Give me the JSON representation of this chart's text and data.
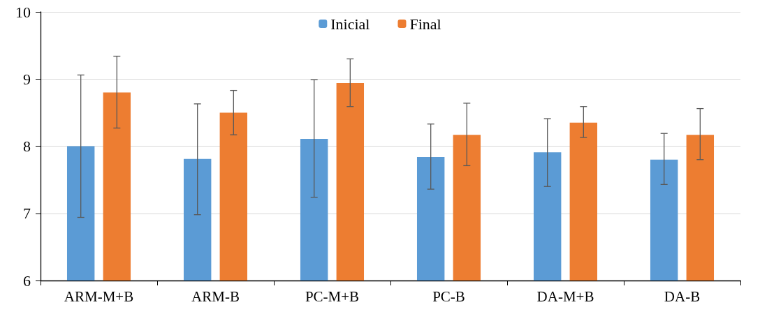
{
  "chart_data": {
    "type": "bar",
    "categories": [
      "ARM-M+B",
      "ARM-B",
      "PC-M+B",
      "PC-B",
      "DA-M+B",
      "DA-B"
    ],
    "series": [
      {
        "name": "Inicial",
        "color": "#5b9bd5",
        "values": [
          8.0,
          7.81,
          8.11,
          7.84,
          7.91,
          7.8
        ],
        "errors": [
          [
            6.94,
            9.06
          ],
          [
            6.98,
            8.63
          ],
          [
            7.24,
            8.99
          ],
          [
            7.36,
            8.33
          ],
          [
            7.4,
            8.41
          ],
          [
            7.43,
            8.19
          ]
        ]
      },
      {
        "name": "Final",
        "color": "#ed7d31",
        "values": [
          8.8,
          8.5,
          8.94,
          8.17,
          8.35,
          8.17
        ],
        "errors": [
          [
            8.27,
            9.34
          ],
          [
            8.17,
            8.83
          ],
          [
            8.59,
            9.3
          ],
          [
            7.71,
            8.64
          ],
          [
            8.13,
            8.59
          ],
          [
            7.8,
            8.56
          ]
        ]
      }
    ],
    "ylim": [
      6,
      10
    ],
    "yticks": [
      6,
      7,
      8,
      9,
      10
    ],
    "grid": "y",
    "legend": "top"
  }
}
